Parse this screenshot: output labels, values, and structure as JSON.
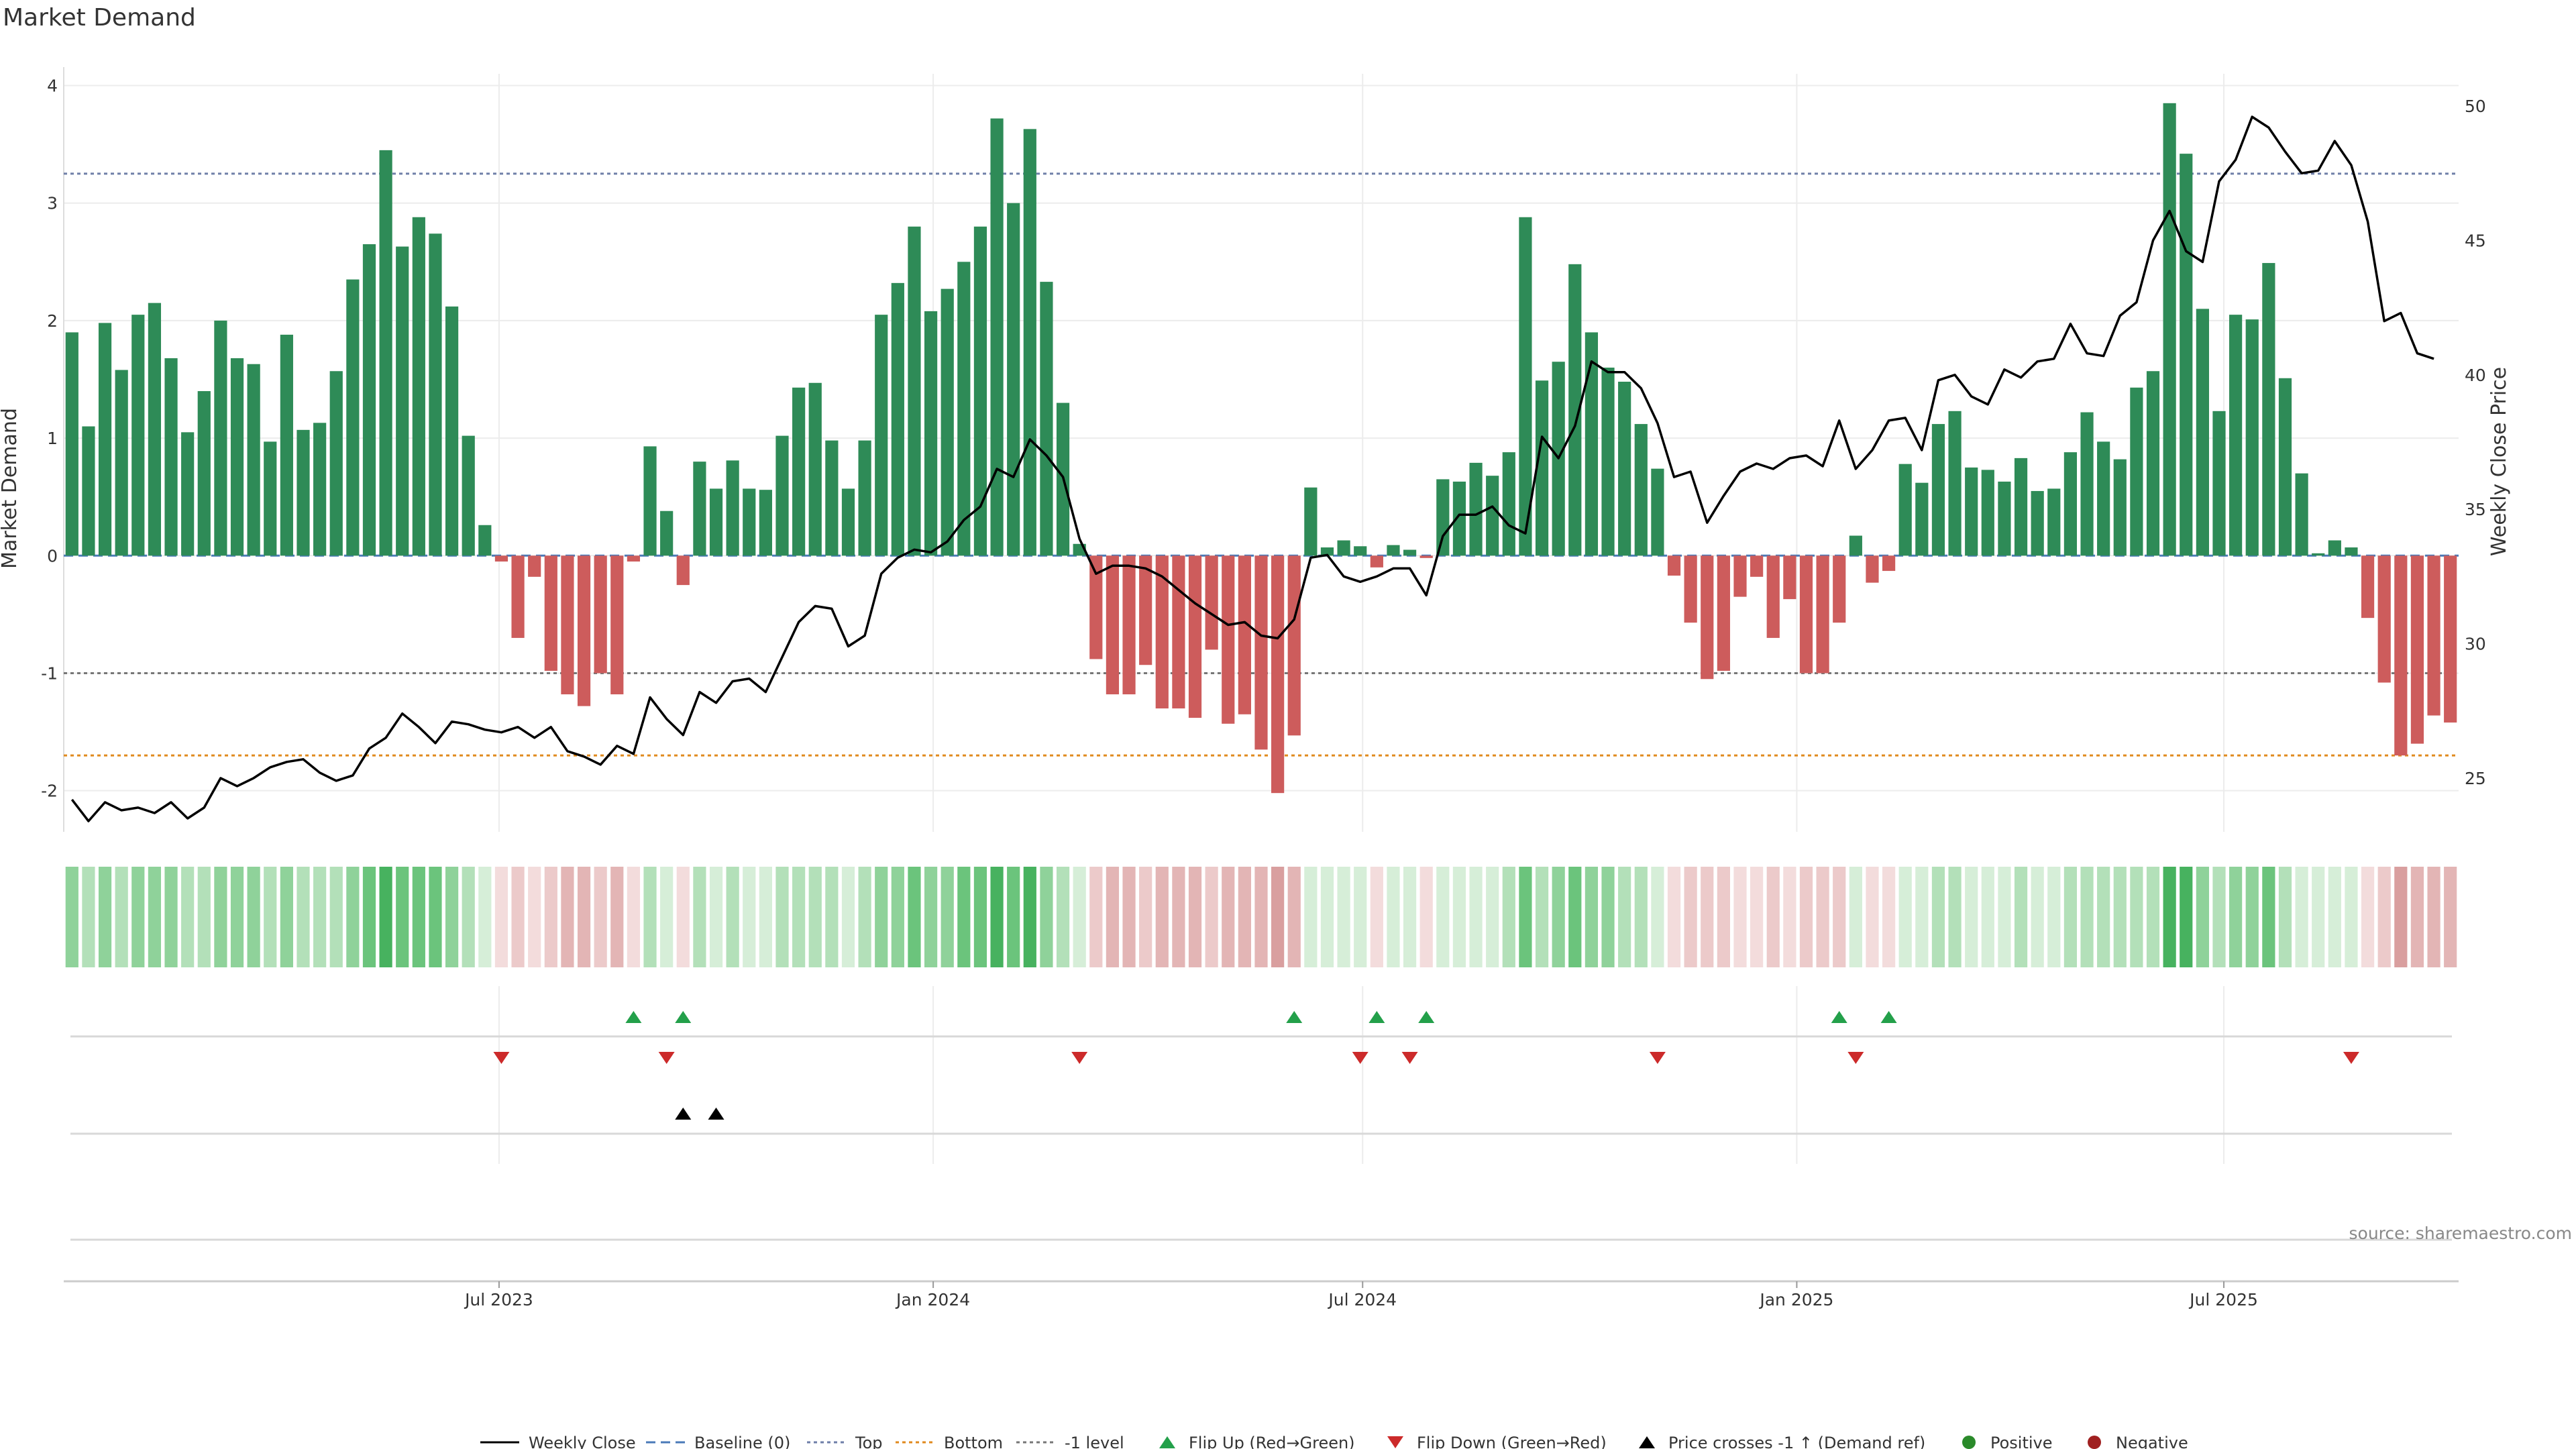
{
  "title": "Market Demand",
  "source": "source: sharemaestro.com",
  "colors": {
    "pos": "#2e8b57",
    "neg": "#cd5c5c",
    "price": "#000000",
    "baseline": "#4a7ab8",
    "top": "#6f7fa8",
    "bottom": "#e08a1e",
    "minus1": "#777777",
    "flip_up": "#23a04a",
    "flip_down": "#cc2a2a",
    "cross": "#000000",
    "positive_dot": "#2a8a2a",
    "negative_dot": "#a02020",
    "strip_pos": [
      "#d6eed8",
      "#b3e0b9",
      "#8fd29a",
      "#6bc47c",
      "#47b25f"
    ],
    "strip_neg": [
      "#f3dcdc",
      "#eccaca",
      "#e3b5b5",
      "#d99f9f"
    ]
  },
  "chart_data": {
    "type": "bar",
    "x_start": "2023-01-01",
    "x_step_days": 7,
    "x_ticks": [
      "Jul 2023",
      "Jan 2024",
      "Jul 2024",
      "Jan 2025",
      "Jul 2025"
    ],
    "x_tick_dates": [
      "2023-07-01",
      "2024-01-01",
      "2024-07-01",
      "2025-01-01",
      "2025-07-01"
    ],
    "y_left": {
      "label": "Market Demand",
      "range": [
        -2.35,
        4.1
      ],
      "ticks": [
        -2,
        -1,
        0,
        1,
        2,
        3,
        4
      ]
    },
    "y_right": {
      "label": "Weekly Close Price",
      "range": [
        23,
        51.2
      ],
      "ticks": [
        25,
        30,
        35,
        40,
        45,
        50
      ]
    },
    "levels": {
      "baseline": 0,
      "top": 3.25,
      "bottom": -1.7,
      "minus1": -1
    },
    "series": [
      {
        "name": "Market Demand",
        "values": [
          1.9,
          1.1,
          1.98,
          1.58,
          2.05,
          2.15,
          1.68,
          1.05,
          1.4,
          2.0,
          1.68,
          1.63,
          0.97,
          1.88,
          1.07,
          1.13,
          1.57,
          2.35,
          2.65,
          3.45,
          2.63,
          2.88,
          2.74,
          2.12,
          1.02,
          0.26,
          -0.05,
          -0.7,
          -0.18,
          -0.98,
          -1.18,
          -1.28,
          -1.0,
          -1.18,
          -0.05,
          0.93,
          0.38,
          -0.25,
          0.8,
          0.57,
          0.81,
          0.57,
          0.56,
          1.02,
          1.43,
          1.47,
          0.98,
          0.57,
          0.98,
          2.05,
          2.32,
          2.8,
          2.08,
          2.27,
          2.5,
          2.8,
          3.72,
          3.0,
          3.63,
          2.33,
          1.3,
          0.1,
          -0.88,
          -1.18,
          -1.18,
          -0.93,
          -1.3,
          -1.3,
          -1.38,
          -0.8,
          -1.43,
          -1.35,
          -1.65,
          -2.02,
          -1.53,
          0.58,
          0.07,
          0.13,
          0.08,
          -0.1,
          0.09,
          0.05,
          -0.02,
          0.65,
          0.63,
          0.79,
          0.68,
          0.88,
          2.88,
          1.49,
          1.65,
          2.48,
          1.9,
          1.6,
          1.48,
          1.12,
          0.74,
          -0.17,
          -0.57,
          -1.05,
          -0.98,
          -0.35,
          -0.18,
          -0.7,
          -0.37,
          -1.0,
          -1.0,
          -0.57,
          0.17,
          -0.23,
          -0.13,
          0.78,
          0.62,
          1.12,
          1.23,
          0.75,
          0.73,
          0.63,
          0.83,
          0.55,
          0.57,
          0.88,
          1.22,
          0.97,
          0.82,
          1.43,
          1.57,
          3.85,
          3.42,
          2.1,
          1.23,
          2.05,
          2.01,
          2.49,
          1.51,
          0.7,
          0.02,
          0.13,
          0.07,
          -0.53,
          -1.08,
          -1.7,
          -1.6,
          -1.36,
          -1.42
        ]
      },
      {
        "name": "Weekly Close",
        "axis": "right",
        "values": [
          24.2,
          23.4,
          24.1,
          23.8,
          23.9,
          23.7,
          24.1,
          23.5,
          23.9,
          25.0,
          24.7,
          25.0,
          25.4,
          25.6,
          25.7,
          25.2,
          24.9,
          25.1,
          26.1,
          26.5,
          27.4,
          26.9,
          26.3,
          27.1,
          27.0,
          26.8,
          26.7,
          26.9,
          26.5,
          26.9,
          26.0,
          25.8,
          25.5,
          26.2,
          25.9,
          28.0,
          27.2,
          26.6,
          28.2,
          27.8,
          28.6,
          28.7,
          28.2,
          29.5,
          30.8,
          31.4,
          31.3,
          29.9,
          30.3,
          32.6,
          33.2,
          33.5,
          33.4,
          33.8,
          34.6,
          35.1,
          36.5,
          36.2,
          37.6,
          37.0,
          36.2,
          33.9,
          32.6,
          32.9,
          32.9,
          32.8,
          32.5,
          32.0,
          31.5,
          31.1,
          30.7,
          30.8,
          30.3,
          30.2,
          30.9,
          33.2,
          33.3,
          32.5,
          32.3,
          32.5,
          32.8,
          32.8,
          31.8,
          34.0,
          34.8,
          34.8,
          35.1,
          34.4,
          34.1,
          37.7,
          36.9,
          38.1,
          40.5,
          40.1,
          40.1,
          39.5,
          38.2,
          36.2,
          36.4,
          34.5,
          35.5,
          36.4,
          36.7,
          36.5,
          36.9,
          37.0,
          36.6,
          38.3,
          36.5,
          37.2,
          38.3,
          38.4,
          37.2,
          39.8,
          40.0,
          39.2,
          38.9,
          40.2,
          39.9,
          40.5,
          40.6,
          41.9,
          40.8,
          40.7,
          42.2,
          42.7,
          45.0,
          46.1,
          44.6,
          44.2,
          47.2,
          48.0,
          49.6,
          49.2,
          48.3,
          47.5,
          47.6,
          48.7,
          47.8,
          45.7,
          42.0,
          42.3,
          40.8,
          40.6
        ]
      }
    ],
    "flip_up_idx": [
      34,
      37,
      74,
      79,
      82,
      107,
      110
    ],
    "flip_down_idx": [
      26,
      36,
      61,
      78,
      81,
      96,
      108,
      138
    ],
    "price_cross_up_idx": [
      37,
      39
    ],
    "legend": [
      "Weekly Close",
      "Baseline (0)",
      "Top",
      "Bottom",
      "-1 level",
      "Flip Up (Red→Green)",
      "Flip Down (Green→Red)",
      "Price crosses -1 ↑ (Demand ref)",
      "Positive",
      "Negative"
    ]
  }
}
